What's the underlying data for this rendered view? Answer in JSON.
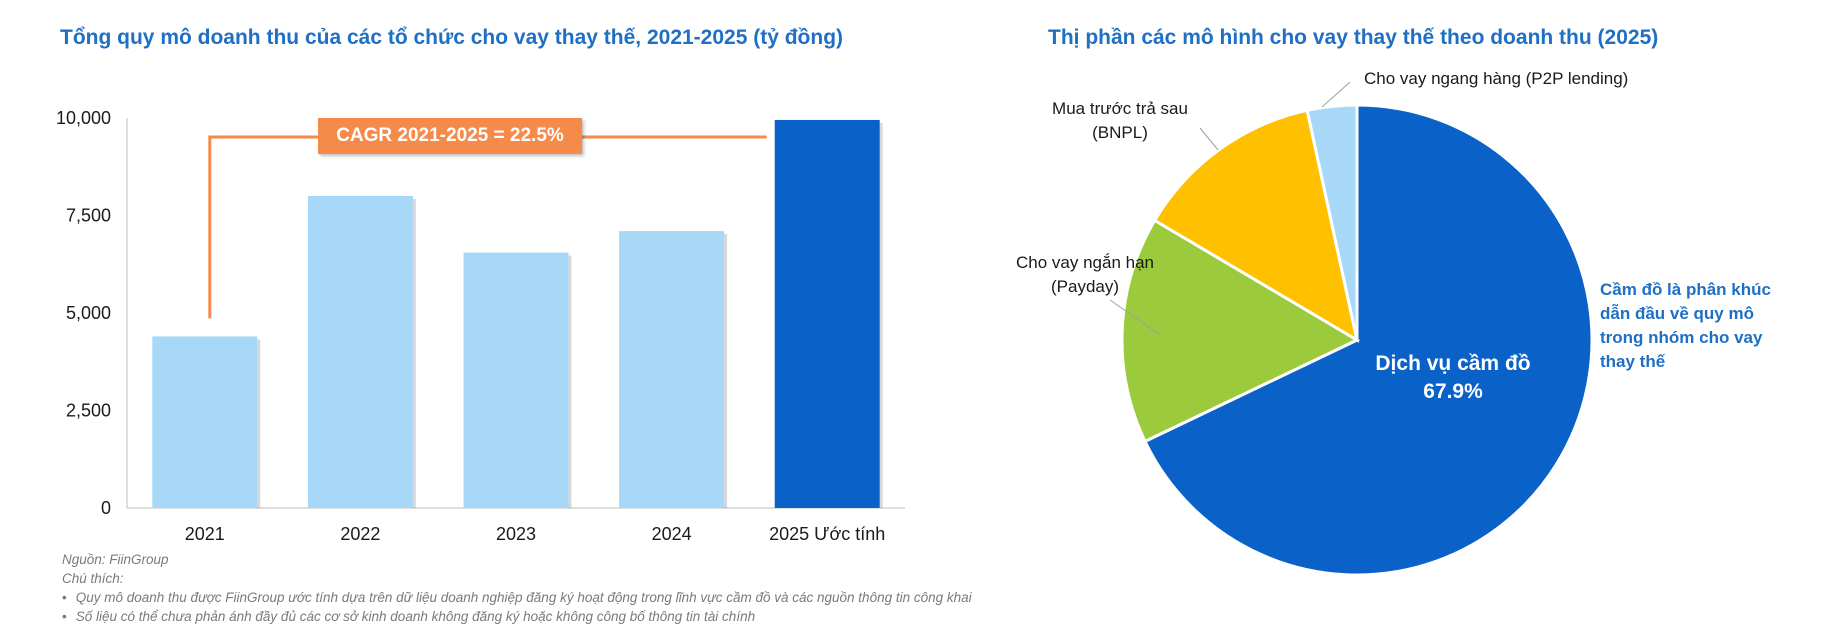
{
  "left_chart": {
    "title": "Tổng quy mô doanh thu của các tổ chức cho vay thay thế, 2021-2025 (tỷ đồng)",
    "cagr_label": "CAGR 2021-2025 = 22.5%"
  },
  "right_chart": {
    "title": "Thị phần các mô hình cho vay thay thế theo doanh thu (2025)",
    "callout": "Cầm đồ là phân khúc dẫn đầu về quy mô trong nhóm cho vay thay thế"
  },
  "notes": {
    "source": "Nguồn: FiinGroup",
    "label": "Chú thích:",
    "items": [
      "Quy mô doanh thu được FiinGroup ước tính dựa trên dữ liệu doanh nghiệp đăng ký hoạt động trong lĩnh vực cầm đồ và các nguồn thông tin công khai",
      "Số liệu có thể chưa phản ánh đầy đủ các cơ sở kinh doanh không đăng ký hoặc không công bố thông tin tài chính"
    ]
  },
  "chart_data": [
    {
      "type": "bar",
      "title": "Tổng quy mô doanh thu của các tổ chức cho vay thay thế, 2021-2025 (tỷ đồng)",
      "categories": [
        "2021",
        "2022",
        "2023",
        "2024",
        "2025 Ước tính"
      ],
      "values": [
        4400,
        8000,
        6550,
        7100,
        9950
      ],
      "colors": [
        "#a8d8f8",
        "#a8d8f8",
        "#a8d8f8",
        "#a8d8f8",
        "#0a62c8"
      ],
      "ylim": [
        0,
        10000
      ],
      "yticks": [
        "0",
        "2,500",
        "5,000",
        "7,500",
        "10,000"
      ],
      "ytick_values": [
        0,
        2500,
        5000,
        7500,
        10000
      ],
      "annotation": "CAGR 2021-2025 = 22.5%"
    },
    {
      "type": "pie",
      "title": "Thị phần các mô hình cho vay thay thế theo doanh thu (2025)",
      "slices": [
        {
          "label": "Dịch vụ cầm đồ",
          "value": 67.9,
          "value_label": "67.9%",
          "color": "#0a62c8"
        },
        {
          "label": "Cho vay ngắn hạn (Payday)",
          "value": 15.6,
          "color": "#9bcb3c"
        },
        {
          "label": "Mua trước trả sau (BNPL)",
          "value": 13.1,
          "color": "#ffc000"
        },
        {
          "label": "Cho vay ngang hàng (P2P lending)",
          "value": 3.4,
          "color": "#a8d8f8"
        }
      ]
    }
  ]
}
